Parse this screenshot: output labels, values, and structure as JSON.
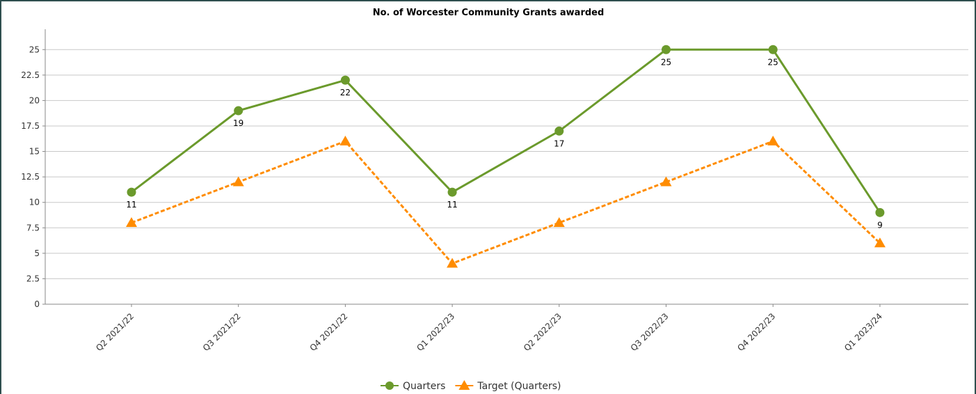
{
  "chart_data": {
    "type": "line",
    "title": "No. of Worcester Community Grants awarded",
    "categories": [
      "Q2 2021/22",
      "Q3 2021/22",
      "Q4 2021/22",
      "Q1 2022/23",
      "Q2 2022/23",
      "Q3 2022/23",
      "Q4 2022/23",
      "Q1 2023/24"
    ],
    "series": [
      {
        "name": "Quarters",
        "color": "#6b9a2c",
        "marker": "circle",
        "dashed": false,
        "data_labels": true,
        "values": [
          11,
          19,
          22,
          11,
          17,
          25,
          25,
          9
        ]
      },
      {
        "name": "Target (Quarters)",
        "color": "#ff8c00",
        "marker": "triangle",
        "dashed": true,
        "data_labels": false,
        "values": [
          8,
          12,
          16,
          4,
          8,
          12,
          16,
          6
        ]
      }
    ],
    "ylim": [
      0,
      27
    ],
    "yticks": [
      0,
      2.5,
      5,
      7.5,
      10,
      12.5,
      15,
      17.5,
      20,
      22.5,
      25
    ],
    "grid": true,
    "legend": "bottom"
  }
}
